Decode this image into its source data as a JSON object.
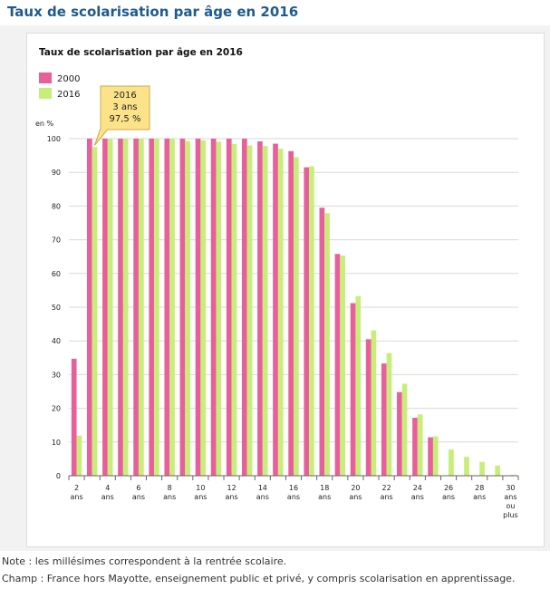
{
  "page": {
    "title": "Taux de scolarisation par âge en 2016",
    "notes": [
      "Note : les millésimes correspondent à la rentrée scolaire.",
      "Champ : France hors Mayotte, enseignement public et privé, y compris scolarisation en apprentissage."
    ]
  },
  "tooltip": {
    "lines": [
      "2016",
      "3 ans",
      "97,5 %"
    ]
  },
  "chart_data": {
    "type": "bar",
    "title": "Taux de scolarisation par âge en 2016",
    "ylabel": "en %",
    "ylim": [
      0,
      100
    ],
    "yticks": [
      0,
      10,
      20,
      30,
      40,
      50,
      60,
      70,
      80,
      90,
      100
    ],
    "grid": true,
    "legend_position": "top-left",
    "categories": [
      "2",
      "3",
      "4",
      "5",
      "6",
      "7",
      "8",
      "9",
      "10",
      "11",
      "12",
      "13",
      "14",
      "15",
      "16",
      "17",
      "18",
      "19",
      "20",
      "21",
      "22",
      "23",
      "24",
      "25",
      "26",
      "27",
      "28",
      "29",
      "30"
    ],
    "xtick_labels": [
      {
        "index": 0,
        "lines": [
          "2",
          "ans"
        ]
      },
      {
        "index": 2,
        "lines": [
          "4",
          "ans"
        ]
      },
      {
        "index": 4,
        "lines": [
          "6",
          "ans"
        ]
      },
      {
        "index": 6,
        "lines": [
          "8",
          "ans"
        ]
      },
      {
        "index": 8,
        "lines": [
          "10",
          "ans"
        ]
      },
      {
        "index": 10,
        "lines": [
          "12",
          "ans"
        ]
      },
      {
        "index": 12,
        "lines": [
          "14",
          "ans"
        ]
      },
      {
        "index": 14,
        "lines": [
          "16",
          "ans"
        ]
      },
      {
        "index": 16,
        "lines": [
          "18",
          "ans"
        ]
      },
      {
        "index": 18,
        "lines": [
          "20",
          "ans"
        ]
      },
      {
        "index": 20,
        "lines": [
          "22",
          "ans"
        ]
      },
      {
        "index": 22,
        "lines": [
          "24",
          "ans"
        ]
      },
      {
        "index": 24,
        "lines": [
          "26",
          "ans"
        ]
      },
      {
        "index": 26,
        "lines": [
          "28",
          "ans"
        ]
      },
      {
        "index": 28,
        "lines": [
          "30",
          "ans",
          "ou",
          "plus"
        ]
      }
    ],
    "series": [
      {
        "name": "2000",
        "color": "#e8609a",
        "values": [
          34.7,
          100,
          100,
          100,
          100,
          100,
          100,
          100,
          100,
          100,
          100,
          100,
          99.2,
          98.5,
          96.3,
          91.5,
          79.5,
          65.8,
          51.2,
          40.5,
          33.3,
          24.8,
          17.2,
          11.4,
          0,
          0,
          0,
          0,
          0
        ]
      },
      {
        "name": "2016",
        "color": "#c8ee7a",
        "values": [
          11.9,
          97.5,
          99.9,
          100,
          100,
          99.9,
          100,
          99.3,
          99.5,
          99.1,
          98.4,
          98.0,
          97.8,
          97.0,
          94.5,
          91.8,
          77.9,
          65.3,
          53.3,
          43.1,
          36.4,
          27.3,
          18.2,
          11.7,
          7.8,
          5.6,
          4.1,
          3.0,
          0.3
        ]
      }
    ]
  }
}
